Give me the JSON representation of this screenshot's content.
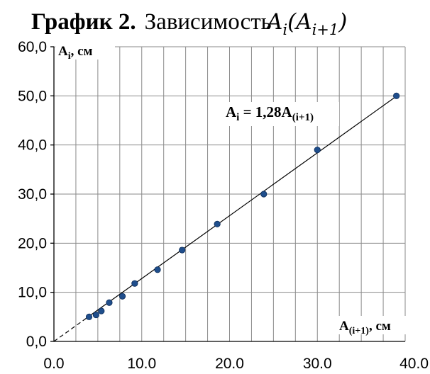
{
  "title": {
    "bold": "График 2.",
    "text": "Зависимость",
    "formula": "A_i(A_{i+1})"
  },
  "chart_data": {
    "type": "scatter",
    "ylabel": "Ai, см",
    "xlabel": "A(i+1), см",
    "xlim": [
      0,
      40
    ],
    "ylim": [
      0,
      60
    ],
    "x_ticks": [
      "0.0",
      "10.0",
      "20.0",
      "30.0",
      "40.0"
    ],
    "y_ticks": [
      "0,0",
      "10,0",
      "20,0",
      "30,0",
      "40,0",
      "50,0",
      "60,0"
    ],
    "grid": true,
    "marker_color": "#1f4e8c",
    "points": [
      {
        "x": 4.0,
        "y": 5.0
      },
      {
        "x": 4.8,
        "y": 5.4
      },
      {
        "x": 5.4,
        "y": 6.2
      },
      {
        "x": 6.3,
        "y": 7.9
      },
      {
        "x": 7.8,
        "y": 9.2
      },
      {
        "x": 9.2,
        "y": 11.8
      },
      {
        "x": 11.8,
        "y": 14.6
      },
      {
        "x": 14.6,
        "y": 18.6
      },
      {
        "x": 18.6,
        "y": 23.9
      },
      {
        "x": 23.9,
        "y": 30.0
      },
      {
        "x": 30.0,
        "y": 39.0
      },
      {
        "x": 39.0,
        "y": 50.0
      }
    ],
    "trendline": {
      "equation": "Ai = 1,28A(i+1)",
      "slope": 1.28,
      "solid_from_x": 4.0,
      "solid_to_x": 39.0
    }
  }
}
